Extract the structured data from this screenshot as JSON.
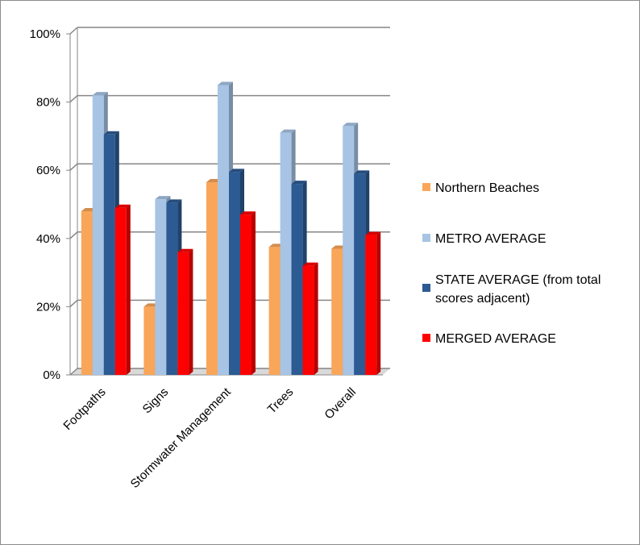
{
  "chart_data": {
    "type": "bar",
    "title": "",
    "xlabel": "",
    "ylabel": "",
    "ylim": [
      0,
      100
    ],
    "y_ticks": [
      "0%",
      "20%",
      "40%",
      "60%",
      "80%",
      "100%"
    ],
    "y_unit": "%",
    "grid": "horizontal",
    "legend_position": "right",
    "style": "3d-clustered-column",
    "categories": [
      "Footpaths",
      "Signs",
      "Stormwater Management",
      "Trees",
      "Overall"
    ],
    "series": [
      {
        "name": "Northern Beaches",
        "color": "#f9a65a",
        "values": [
          48,
          20,
          56.5,
          37.5,
          37
        ]
      },
      {
        "name": "METRO AVERAGE",
        "color": "#a7c4e5",
        "values": [
          82,
          51.5,
          85,
          71,
          73
        ]
      },
      {
        "name": "STATE AVERAGE (from total scores adjacent)",
        "legend_lines": [
          "STATE AVERAGE (from total",
          "scores adjacent)"
        ],
        "color": "#2c5a93",
        "values": [
          70.5,
          50.5,
          59.5,
          56,
          59
        ]
      },
      {
        "name": "MERGED AVERAGE",
        "color": "#ff0000",
        "values": [
          49,
          36,
          47,
          32,
          41
        ]
      }
    ]
  }
}
